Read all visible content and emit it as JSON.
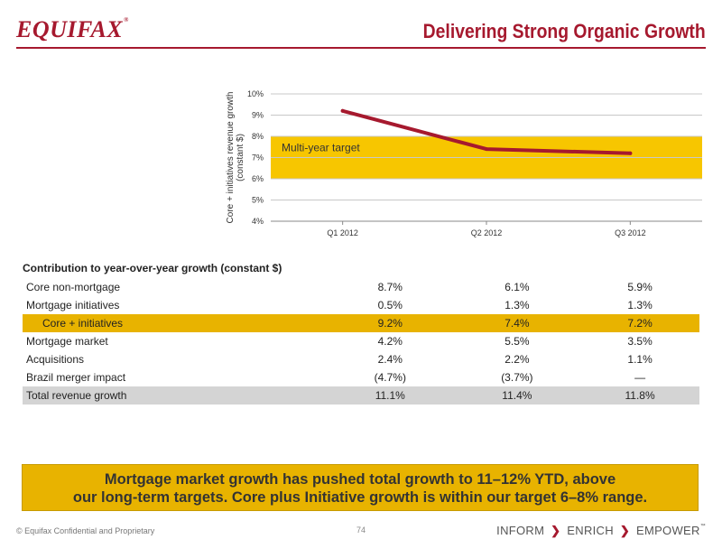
{
  "header": {
    "logo": "EQUIFAX",
    "logo_mark": "®",
    "title": "Delivering Strong Organic Growth"
  },
  "chart_data": {
    "type": "line",
    "ylabel": "Core + initiatives revenue growth (constant $)",
    "categories": [
      "Q1 2012",
      "Q2 2012",
      "Q3 2012"
    ],
    "series": [
      {
        "name": "Core + initiatives",
        "values": [
          9.2,
          7.4,
          7.2
        ]
      }
    ],
    "ylim": [
      4,
      10
    ],
    "yticks": [
      4,
      5,
      6,
      7,
      8,
      9,
      10
    ],
    "ytick_labels": [
      "4%",
      "5%",
      "6%",
      "7%",
      "8%",
      "9%",
      "10%"
    ],
    "target_band": {
      "from": 6,
      "to": 8,
      "label": "Multi-year target",
      "color": "#f7c600"
    },
    "line_color": "#a6192e",
    "grid": true
  },
  "table": {
    "header": "Contribution to year-over-year growth (constant $)",
    "rows": [
      {
        "label": "Core non-mortgage",
        "values": [
          "8.7%",
          "6.1%",
          "5.9%"
        ],
        "style": ""
      },
      {
        "label": "Mortgage initiatives",
        "values": [
          "0.5%",
          "1.3%",
          "1.3%"
        ],
        "style": ""
      },
      {
        "label": "Core + initiatives",
        "values": [
          "9.2%",
          "7.4%",
          "7.2%"
        ],
        "style": "hl"
      },
      {
        "label": "Mortgage market",
        "values": [
          "4.2%",
          "5.5%",
          "3.5%"
        ],
        "style": ""
      },
      {
        "label": "Acquisitions",
        "values": [
          "2.4%",
          "2.2%",
          "1.1%"
        ],
        "style": ""
      },
      {
        "label": "Brazil merger impact",
        "values": [
          "(4.7%)",
          "(3.7%)",
          "—"
        ],
        "style": ""
      },
      {
        "label": "Total revenue growth",
        "values": [
          "11.1%",
          "11.4%",
          "11.8%"
        ],
        "style": "tot"
      }
    ]
  },
  "banner": {
    "line1": "Mortgage market growth has pushed total growth to 11–12% YTD, above",
    "line2": "our long-term targets. Core plus Initiative growth is within our target 6–8% range."
  },
  "footer": {
    "confidential": "© Equifax Confidential and Proprietary",
    "page_number": "74",
    "tagline": [
      "INFORM",
      "ENRICH",
      "EMPOWER"
    ],
    "tagline_chevron": "❯",
    "tagline_mark": "™"
  }
}
